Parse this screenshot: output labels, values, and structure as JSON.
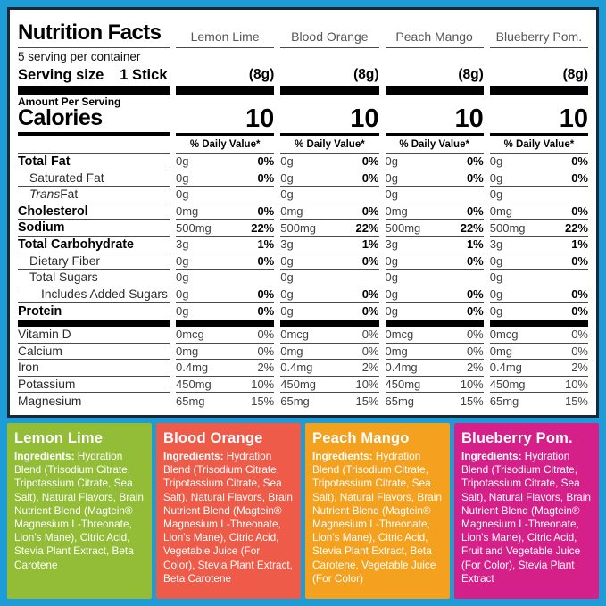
{
  "colors": {
    "background_blue": "#1d9cd8",
    "panel_border": "#15293a",
    "bar_black": "#000000"
  },
  "header": {
    "title": "Nutrition Facts",
    "servings_per_container": "5 serving per container",
    "serving_size_label": "Serving size",
    "serving_size_value": "1 Stick",
    "amount_per_serving": "Amount Per Serving",
    "calories_label": "Calories",
    "daily_value_label": "% Daily Value*"
  },
  "labels": {
    "ingredients": "Ingredients:"
  },
  "flavors": [
    {
      "name": "Lemon Lime",
      "serving": "(8g)",
      "calories": "10",
      "color": "#93bd37",
      "ingredients": "Hydration Blend (Trisodium Citrate, Tripotassium Citrate, Sea Salt), Natural Flavors, Brain Nutrient Blend (Magtein® Magnesium L-Threonate, Lion's Mane), Citric Acid, Stevia Plant Extract, Beta Carotene"
    },
    {
      "name": "Blood Orange",
      "serving": "(8g)",
      "calories": "10",
      "color": "#ee5b49",
      "ingredients": "Hydration Blend (Trisodium Citrate, Tripotassium Citrate, Sea Salt), Natural Flavors, Brain Nutrient Blend (Magtein® Magnesium L-Threonate, Lion's Mane), Citric Acid, Vegetable Juice (For Color), Stevia Plant Extract, Beta Carotene"
    },
    {
      "name": "Peach Mango",
      "serving": "(8g)",
      "calories": "10",
      "color": "#f4a11f",
      "ingredients": "Hydration Blend (Trisodium Citrate, Tripotassium Citrate, Sea Salt), Natural Flavors, Brain Nutrient Blend (Magtein® Magnesium L-Threonate, Lion's Mane), Citric Acid, Stevia Plant Extract, Beta Carotene, Vegetable Juice (For Color)"
    },
    {
      "name": "Blueberry Pom.",
      "serving": "(8g)",
      "calories": "10",
      "color": "#d62089",
      "ingredients": "Hydration Blend (Trisodium Citrate, Tripotassium Citrate, Sea Salt), Natural Flavors, Brain Nutrient Blend (Magtein® Magnesium L-Threonate, Lion's Mane), Citric Acid, Fruit and Vegetable Juice (For Color), Stevia Plant Extract"
    }
  ],
  "nutrition_rows": [
    {
      "label": "Total Fat",
      "bold": true,
      "indent": 0,
      "amount": "0g",
      "percent": "0%",
      "percent_bold": true
    },
    {
      "label": "Saturated Fat",
      "indent": 1,
      "amount": "0g",
      "percent": "0%",
      "percent_bold": true
    },
    {
      "italic": "Trans",
      "label": " Fat",
      "indent": 1,
      "amount": "0g",
      "percent": ""
    },
    {
      "label": "Cholesterol",
      "bold": true,
      "indent": 0,
      "amount": "0mg",
      "percent": "0%",
      "percent_bold": true
    },
    {
      "label": "Sodium",
      "bold": true,
      "indent": 0,
      "amount": "500mg",
      "percent": "22%",
      "percent_bold": true
    },
    {
      "label": "Total Carbohydrate",
      "bold": true,
      "indent": 0,
      "amount": "3g",
      "percent": "1%",
      "percent_bold": true
    },
    {
      "label": "Dietary Fiber",
      "indent": 1,
      "amount": "0g",
      "percent": "0%",
      "percent_bold": true
    },
    {
      "label": "Total Sugars",
      "indent": 1,
      "amount": "0g",
      "percent": ""
    },
    {
      "label": "Includes Added Sugars",
      "indent": 2,
      "amount": "0g",
      "percent": "0%",
      "percent_bold": true
    },
    {
      "label": "Protein",
      "bold": true,
      "indent": 0,
      "amount": "0g",
      "percent": "0%",
      "percent_bold": true,
      "divider_after": "thick"
    },
    {
      "label": "Vitamin D",
      "indent": 0,
      "amount": "0mcg",
      "percent": "0%"
    },
    {
      "label": "Calcium",
      "indent": 0,
      "amount": "0mg",
      "percent": "0%"
    },
    {
      "label": "Iron",
      "indent": 0,
      "amount": "0.4mg",
      "percent": "2%"
    },
    {
      "label": "Potassium",
      "indent": 0,
      "amount": "450mg",
      "percent": "10%"
    },
    {
      "label": "Magnesium",
      "indent": 0,
      "amount": "65mg",
      "percent": "15%"
    }
  ]
}
